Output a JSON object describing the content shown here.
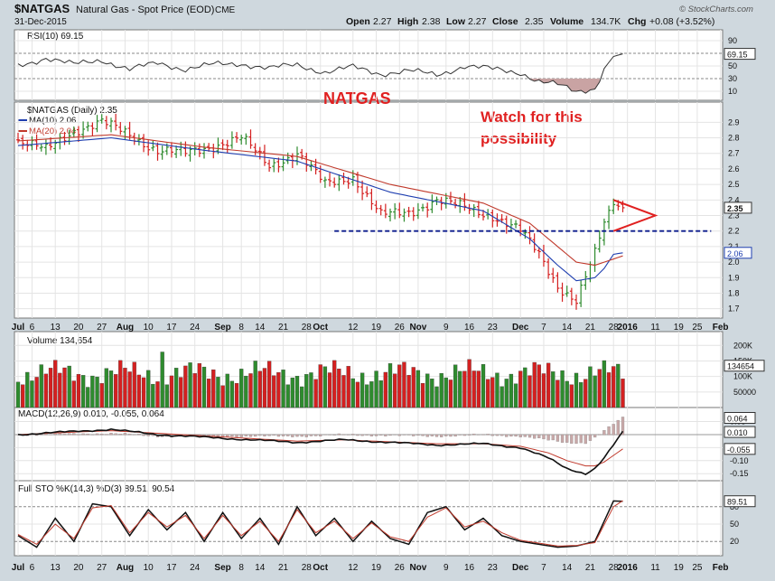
{
  "header": {
    "symbol": "$NATGAS",
    "name": "Natural Gas - Spot Price (EOD)",
    "exchange": "CME",
    "date": "31-Dec-2015",
    "open_label": "Open",
    "open": "2.27",
    "high_label": "High",
    "high": "2.38",
    "low_label": "Low",
    "low": "2.27",
    "close_label": "Close",
    "close": "2.35",
    "volume_label": "Volume",
    "volume": "134.7K",
    "chg_label": "Chg",
    "chg": "+0.08 (+3.52%)",
    "brand": "© StockCharts.com"
  },
  "annotations": {
    "title": "NATGAS",
    "note_line1": "Watch for this",
    "note_line2": "possibility"
  },
  "colors": {
    "up": "#2e8b2e",
    "down": "#d42020",
    "ma10": "#1f3fb0",
    "ma20": "#c0392b",
    "annotation": "#e02020",
    "support": "#0a1a8c",
    "panel_bg": "#ffffff",
    "frame": "#cfd8de"
  },
  "xaxis": {
    "labels": [
      {
        "t": "Jul",
        "d": 0,
        "b": true
      },
      {
        "t": "6",
        "d": 3
      },
      {
        "t": "13",
        "d": 8
      },
      {
        "t": "20",
        "d": 13
      },
      {
        "t": "27",
        "d": 18
      },
      {
        "t": "Aug",
        "d": 23,
        "b": true
      },
      {
        "t": "10",
        "d": 28
      },
      {
        "t": "17",
        "d": 33
      },
      {
        "t": "24",
        "d": 38
      },
      {
        "t": "Sep",
        "d": 44,
        "b": true
      },
      {
        "t": "8",
        "d": 48
      },
      {
        "t": "14",
        "d": 52
      },
      {
        "t": "21",
        "d": 57
      },
      {
        "t": "28",
        "d": 62
      },
      {
        "t": "Oct",
        "d": 65,
        "b": true
      },
      {
        "t": "12",
        "d": 72
      },
      {
        "t": "19",
        "d": 77
      },
      {
        "t": "26",
        "d": 82
      },
      {
        "t": "Nov",
        "d": 86,
        "b": true
      },
      {
        "t": "9",
        "d": 92
      },
      {
        "t": "16",
        "d": 97
      },
      {
        "t": "23",
        "d": 102
      },
      {
        "t": "Dec",
        "d": 108,
        "b": true
      },
      {
        "t": "7",
        "d": 113
      },
      {
        "t": "14",
        "d": 118
      },
      {
        "t": "21",
        "d": 123
      },
      {
        "t": "28",
        "d": 128
      },
      {
        "t": "2016",
        "d": 131,
        "b": true
      },
      {
        "t": "11",
        "d": 137
      },
      {
        "t": "19",
        "d": 142
      },
      {
        "t": "25",
        "d": 146
      },
      {
        "t": "Feb",
        "d": 151,
        "b": true
      }
    ]
  },
  "chart_data": [
    {
      "type": "line",
      "panel": "rsi",
      "title": "RSI(10) 69.15",
      "ylim": [
        0,
        100
      ],
      "y_ticks": [
        10,
        30,
        50,
        70,
        90
      ],
      "current": "69.15",
      "overbought": 70,
      "oversold": 30,
      "x": [
        0,
        6,
        12,
        18,
        24,
        30,
        36,
        42,
        48,
        54,
        60,
        66,
        72,
        78,
        84,
        90,
        96,
        102,
        108,
        112,
        116,
        120,
        124,
        126,
        128,
        130
      ],
      "values": [
        50,
        63,
        52,
        60,
        44,
        55,
        45,
        52,
        54,
        46,
        52,
        40,
        48,
        38,
        42,
        36,
        50,
        45,
        40,
        25,
        20,
        10,
        15,
        45,
        65,
        69.15
      ]
    },
    {
      "type": "candlestick",
      "panel": "price",
      "title": "$NATGAS (Daily) 2.35",
      "ylim": [
        1.64,
        3.03
      ],
      "y_ticks": [
        1.7,
        1.8,
        1.9,
        2.0,
        2.1,
        2.2,
        2.3,
        2.4,
        2.5,
        2.6,
        2.7,
        2.8,
        2.9
      ],
      "last_price": "2.35",
      "x": [
        0,
        6,
        12,
        18,
        24,
        30,
        36,
        42,
        48,
        54,
        60,
        66,
        72,
        78,
        84,
        90,
        96,
        102,
        108,
        112,
        116,
        120,
        122,
        124,
        126,
        128,
        130
      ],
      "close": [
        2.78,
        2.72,
        2.85,
        2.9,
        2.82,
        2.72,
        2.7,
        2.75,
        2.8,
        2.62,
        2.7,
        2.5,
        2.55,
        2.3,
        2.32,
        2.4,
        2.35,
        2.3,
        2.2,
        2.05,
        1.85,
        1.75,
        1.9,
        2.05,
        2.25,
        2.37,
        2.35
      ],
      "series": [
        {
          "name": "MA(10) 2.06",
          "x": [
            0,
            20,
            40,
            60,
            80,
            100,
            110,
            116,
            120,
            124,
            126,
            128,
            130
          ],
          "values": [
            2.75,
            2.8,
            2.72,
            2.65,
            2.45,
            2.33,
            2.15,
            1.98,
            1.88,
            1.9,
            1.96,
            2.05,
            2.06
          ]
        },
        {
          "name": "MA(20) 2.04",
          "x": [
            0,
            20,
            40,
            60,
            80,
            100,
            110,
            116,
            120,
            124,
            126,
            128,
            130
          ],
          "values": [
            2.78,
            2.82,
            2.74,
            2.68,
            2.5,
            2.38,
            2.25,
            2.1,
            2.0,
            1.98,
            2.0,
            2.02,
            2.04
          ]
        }
      ],
      "support_level": 2.2,
      "triangle": {
        "start": [
          128,
          2.4
        ],
        "apex": [
          137,
          2.3
        ],
        "end": [
          128,
          2.2
        ]
      }
    },
    {
      "type": "bar",
      "panel": "volume",
      "title": "Volume 134,654",
      "y_ticks_labels": [
        "200K",
        "150K",
        "100K",
        "50000"
      ],
      "y_ticks": [
        200000,
        150000,
        100000,
        50000
      ],
      "ylim": [
        0,
        230000
      ],
      "current": "134654",
      "volume_seed_count": 130
    },
    {
      "type": "line",
      "panel": "macd",
      "title": "MACD(12,26,9) 0.010, -0.055, 0.064",
      "ylim": [
        -0.17,
        0.09
      ],
      "y_ticks": [
        -0.15,
        -0.1,
        -0.05,
        0.0,
        0.05
      ],
      "y_tick_labels": [
        "-0.15",
        "-0.10",
        "-0.05",
        "0.00",
        "0.05"
      ],
      "current_labels": [
        "0.064",
        "0.010",
        "-0.055"
      ],
      "x": [
        0,
        10,
        20,
        30,
        40,
        50,
        60,
        70,
        80,
        90,
        100,
        108,
        114,
        118,
        122,
        124,
        126,
        128,
        130
      ],
      "series": [
        {
          "name": "MACD",
          "values": [
            0.0,
            0.01,
            0.02,
            0.0,
            -0.01,
            -0.02,
            -0.03,
            -0.02,
            -0.03,
            -0.04,
            -0.035,
            -0.05,
            -0.09,
            -0.13,
            -0.15,
            -0.13,
            -0.09,
            -0.04,
            0.01
          ]
        },
        {
          "name": "Signal",
          "values": [
            0.0,
            0.008,
            0.015,
            0.005,
            -0.005,
            -0.015,
            -0.025,
            -0.02,
            -0.028,
            -0.035,
            -0.035,
            -0.045,
            -0.07,
            -0.1,
            -0.12,
            -0.12,
            -0.105,
            -0.08,
            -0.055
          ]
        }
      ],
      "histogram_x_start": 112
    },
    {
      "type": "line",
      "panel": "stochastic",
      "title": "Full STO %K(14,3) %D(3) 89.51, 90.54",
      "ylim": [
        0,
        100
      ],
      "y_ticks": [
        20,
        50,
        80
      ],
      "current_labels": [
        "89.51"
      ],
      "x": [
        0,
        4,
        8,
        12,
        16,
        20,
        24,
        28,
        32,
        36,
        40,
        44,
        48,
        52,
        56,
        60,
        64,
        68,
        72,
        76,
        80,
        84,
        88,
        92,
        96,
        100,
        104,
        108,
        112,
        116,
        120,
        124,
        128,
        130
      ],
      "series": [
        {
          "name": "%K",
          "values": [
            30,
            10,
            60,
            20,
            85,
            80,
            30,
            75,
            40,
            70,
            20,
            70,
            25,
            60,
            15,
            80,
            30,
            60,
            20,
            55,
            25,
            15,
            70,
            80,
            40,
            60,
            30,
            20,
            15,
            10,
            12,
            20,
            90,
            89.51
          ]
        },
        {
          "name": "%D",
          "values": [
            32,
            15,
            50,
            25,
            78,
            82,
            35,
            70,
            45,
            65,
            25,
            65,
            30,
            55,
            20,
            75,
            35,
            55,
            25,
            52,
            28,
            20,
            62,
            78,
            45,
            55,
            35,
            22,
            17,
            12,
            13,
            18,
            80,
            90.54
          ]
        }
      ]
    }
  ]
}
